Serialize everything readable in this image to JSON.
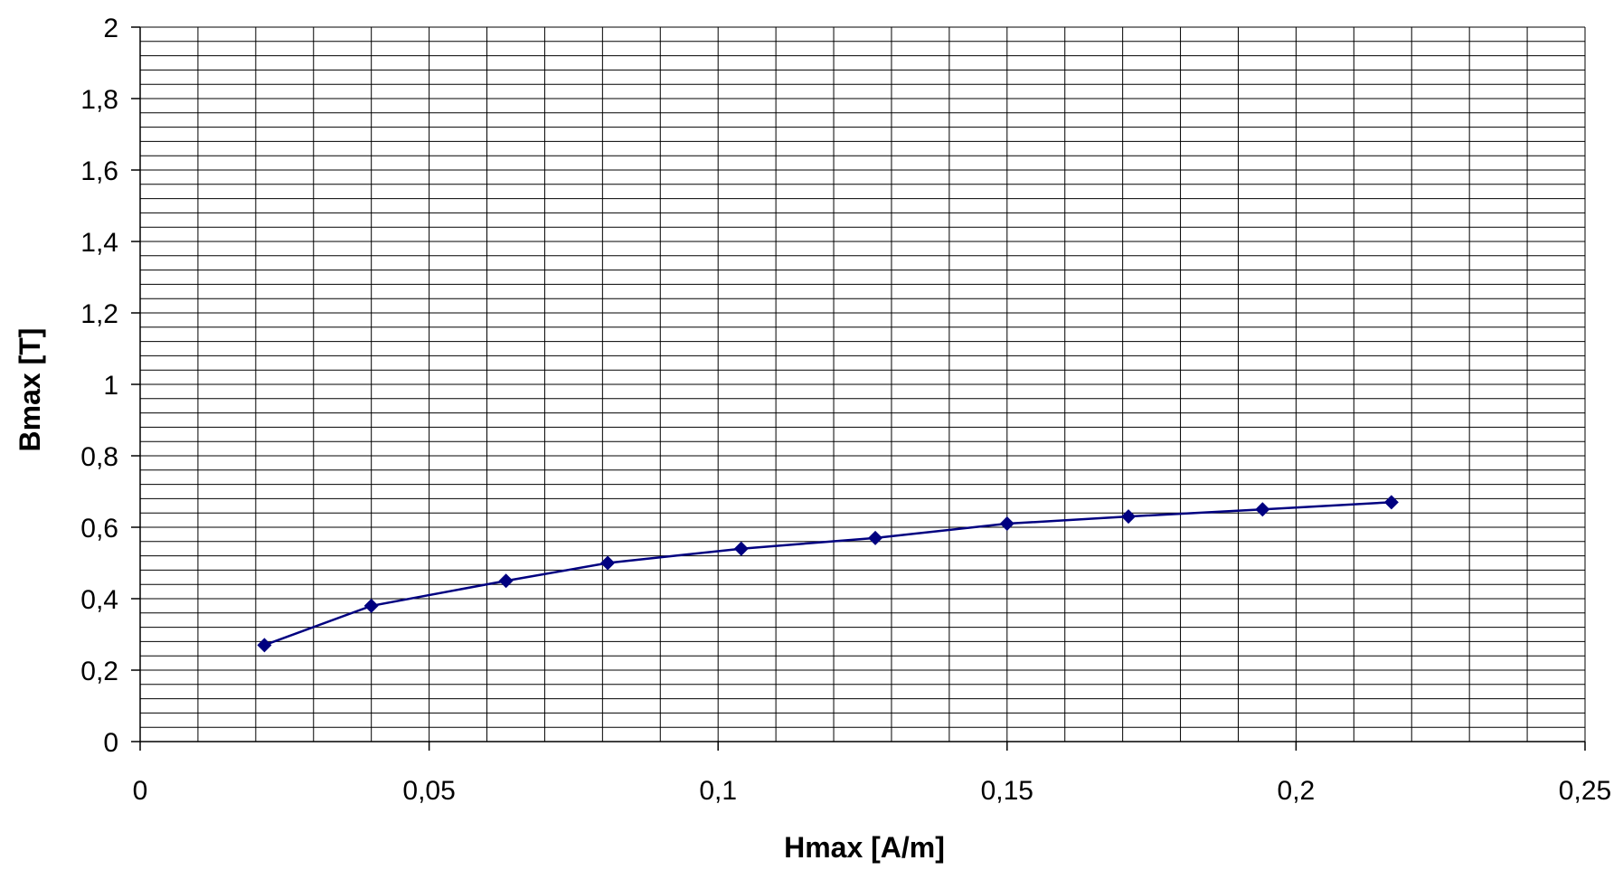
{
  "chart_data": {
    "type": "line",
    "title": "",
    "xlabel": "Hmax [A/m]",
    "ylabel": "Bmax [T]",
    "xlim": [
      0,
      0.25
    ],
    "ylim": [
      0,
      2
    ],
    "x_ticks": [
      "0",
      "0,05",
      "0,1",
      "0,15",
      "0,2",
      "0,25"
    ],
    "y_ticks": [
      "0",
      "0,2",
      "0,4",
      "0,6",
      "0,8",
      "1",
      "1,2",
      "1,4",
      "1,6",
      "1,8",
      "2"
    ],
    "grid": true,
    "legend": "none",
    "series": [
      {
        "color": "#000080",
        "marker": "diamond",
        "points": [
          {
            "x": 0.0215,
            "y": 0.27
          },
          {
            "x": 0.04,
            "y": 0.38
          },
          {
            "x": 0.0633,
            "y": 0.45
          },
          {
            "x": 0.0809,
            "y": 0.5
          },
          {
            "x": 0.104,
            "y": 0.54
          },
          {
            "x": 0.1272,
            "y": 0.57
          },
          {
            "x": 0.15,
            "y": 0.61
          },
          {
            "x": 0.171,
            "y": 0.63
          },
          {
            "x": 0.1942,
            "y": 0.65
          },
          {
            "x": 0.2165,
            "y": 0.67
          }
        ]
      }
    ]
  }
}
